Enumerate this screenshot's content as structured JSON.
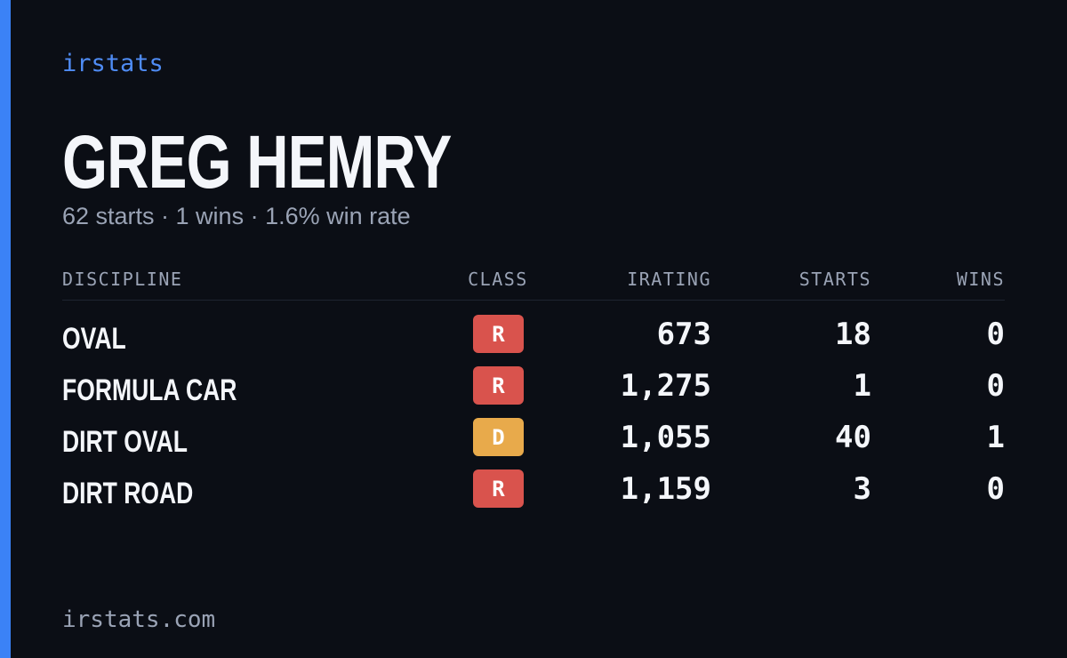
{
  "brand": "irstats",
  "driver": {
    "name": "GREG HEMRY",
    "summary": "62 starts · 1 wins · 1.6% win rate"
  },
  "table": {
    "columns": [
      "DISCIPLINE",
      "CLASS",
      "IRATING",
      "STARTS",
      "WINS"
    ],
    "rows": [
      [
        "OVAL",
        "R",
        "673",
        "18",
        "0"
      ],
      [
        "FORMULA CAR",
        "R",
        "1,275",
        "1",
        "0"
      ],
      [
        "DIRT OVAL",
        "D",
        "1,055",
        "40",
        "1"
      ],
      [
        "DIRT ROAD",
        "R",
        "1,159",
        "3",
        "0"
      ]
    ],
    "class_colors": {
      "R": "#d9534d",
      "D": "#e8aa4b"
    }
  },
  "footer": "irstats.com"
}
